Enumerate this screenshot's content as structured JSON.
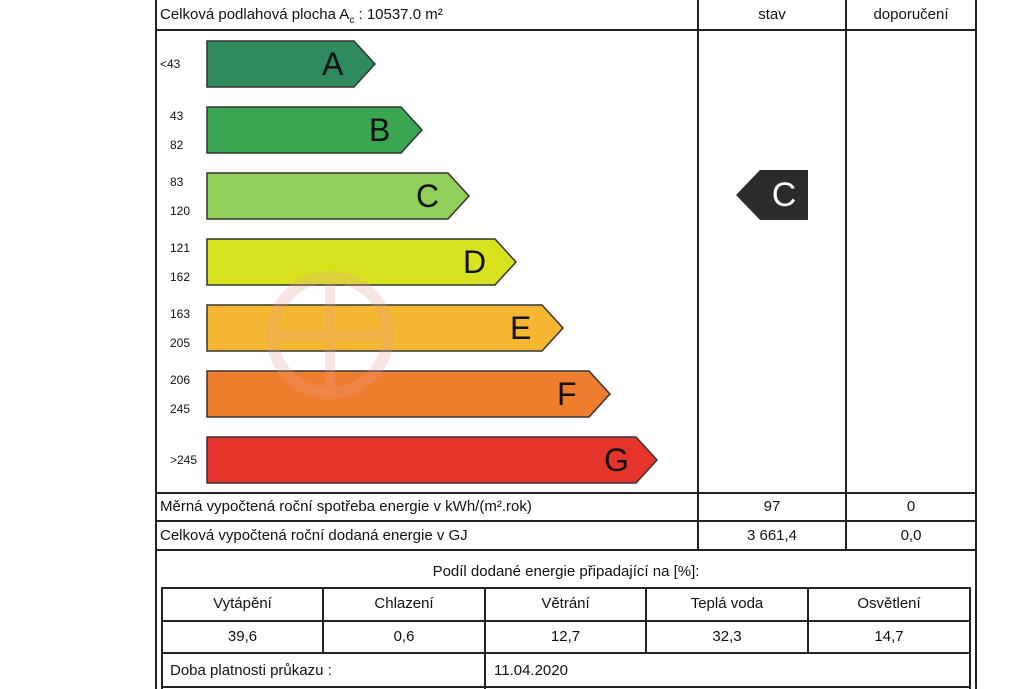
{
  "header": {
    "area_label": "Celková podlahová plocha A",
    "area_subscript": "c",
    "area_value": " : 10537.0 m²",
    "col_stav": "stav",
    "col_doporuceni": "doporučení"
  },
  "classes": [
    {
      "letter": "A",
      "range_top": "<43",
      "range_bottom": "",
      "color": "#2f8a5e"
    },
    {
      "letter": "B",
      "range_top": "43",
      "range_bottom": "82",
      "color": "#3aa652"
    },
    {
      "letter": "C",
      "range_top": "83",
      "range_bottom": "120",
      "color": "#8fcf5a"
    },
    {
      "letter": "D",
      "range_top": "121",
      "range_bottom": "162",
      "color": "#d9e21f"
    },
    {
      "letter": "E",
      "range_top": "163",
      "range_bottom": "205",
      "color": "#f5b731"
    },
    {
      "letter": "F",
      "range_top": "206",
      "range_bottom": "245",
      "color": "#ef7d2e"
    },
    {
      "letter": "G",
      "range_top": ">245",
      "range_bottom": "",
      "color": "#e5342b"
    }
  ],
  "stav_class": "C",
  "specific": {
    "label": "Měrná vypočtená roční spotřeba energie v kWh/(m².rok)",
    "stav": "97",
    "doporuceni": "0"
  },
  "total": {
    "label": "Celková vypočtená roční dodaná energie v GJ",
    "stav": "3 661,4",
    "doporuceni": "0,0"
  },
  "share": {
    "title": "Podíl dodané energie připadající na [%]:",
    "headers": [
      "Vytápění",
      "Chlazení",
      "Větrání",
      "Teplá voda",
      "Osvětlení"
    ],
    "values": [
      "39,6",
      "0,6",
      "12,7",
      "32,3",
      "14,7"
    ]
  },
  "validity": {
    "label": "Doba platnosti průkazu :",
    "value": "11.04.2020"
  }
}
